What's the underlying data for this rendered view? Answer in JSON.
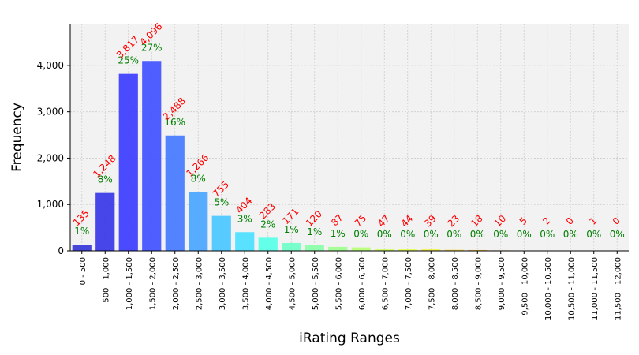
{
  "chart_data": {
    "type": "bar",
    "xlabel": "iRating Ranges",
    "ylabel": "Frequency",
    "ylim": [
      0,
      4900
    ],
    "yticks": [
      0,
      1000,
      2000,
      3000,
      4000
    ],
    "ytick_labels": [
      "0",
      "1,000",
      "2,000",
      "3,000",
      "4,000"
    ],
    "grid": true,
    "categories": [
      "0 - 500",
      "500 - 1,000",
      "1,000 - 1,500",
      "1,500 - 2,000",
      "2,000 - 2,500",
      "2,500 - 3,000",
      "3,000 - 3,500",
      "3,500 - 4,000",
      "4,000 - 4,500",
      "4,500 - 5,000",
      "5,000 - 5,500",
      "5,500 - 6,000",
      "6,000 - 6,500",
      "6,500 - 7,000",
      "7,000 - 7,500",
      "7,500 - 8,000",
      "8,000 - 8,500",
      "8,500 - 9,000",
      "9,000 - 9,500",
      "9,500 - 10,000",
      "10,000 - 10,500",
      "10,500 - 11,000",
      "11,000 - 11,500",
      "11,500 - 12,000"
    ],
    "values": [
      135,
      1248,
      3817,
      4096,
      2488,
      1266,
      755,
      404,
      283,
      171,
      120,
      87,
      75,
      47,
      44,
      39,
      23,
      18,
      10,
      5,
      2,
      0,
      1,
      0
    ],
    "value_labels": [
      "135",
      "1,248",
      "3,817",
      "4,096",
      "2,488",
      "1,266",
      "755",
      "404",
      "283",
      "171",
      "120",
      "87",
      "75",
      "47",
      "44",
      "39",
      "23",
      "18",
      "10",
      "5",
      "2",
      "0",
      "1",
      "0"
    ],
    "percent_labels": [
      "1%",
      "8%",
      "25%",
      "27%",
      "16%",
      "8%",
      "5%",
      "3%",
      "2%",
      "1%",
      "1%",
      "1%",
      "0%",
      "0%",
      "0%",
      "0%",
      "0%",
      "0%",
      "0%",
      "0%",
      "0%",
      "0%",
      "0%",
      "0%"
    ],
    "bar_colors": [
      "#3c3cd8",
      "#3c3ce8",
      "#4040ff",
      "#4455ff",
      "#4a7cff",
      "#4ea8ff",
      "#4ec8ff",
      "#50e0ff",
      "#5cffe8",
      "#72ffc8",
      "#8cffaa",
      "#a0ff90",
      "#b8ff7a",
      "#cfff66",
      "#e2ff5a",
      "#f0f050",
      "#f5d848",
      "#f5c040",
      "#f0a838",
      "#ea8c30",
      "#e06a28",
      "#d84c22",
      "#cc3520",
      "#c02420"
    ],
    "colors": {
      "value_label": "#ff0000",
      "percent_label": "#008000",
      "plot_background": "#f2f2f2",
      "grid": "#cccccc"
    }
  }
}
